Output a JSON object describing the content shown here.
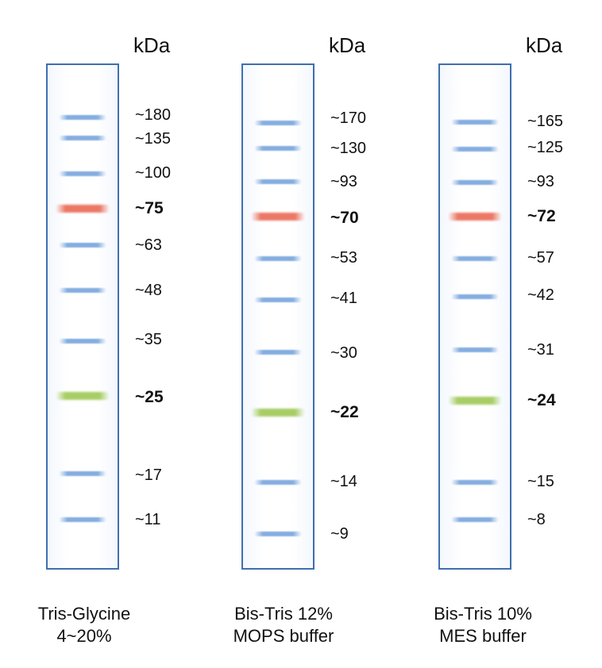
{
  "unit_label": "kDa",
  "lanes": [
    {
      "caption": [
        "Tris-Glycine",
        "4~20%"
      ],
      "bands": [
        {
          "label": "~180",
          "color": "blue",
          "bold": false
        },
        {
          "label": "~135",
          "color": "blue",
          "bold": false
        },
        {
          "label": "~100",
          "color": "blue",
          "bold": false
        },
        {
          "label": "~75",
          "color": "red",
          "bold": true
        },
        {
          "label": "~63",
          "color": "blue",
          "bold": false
        },
        {
          "label": "~48",
          "color": "blue",
          "bold": false
        },
        {
          "label": "~35",
          "color": "blue",
          "bold": false
        },
        {
          "label": "~25",
          "color": "green",
          "bold": true
        },
        {
          "label": "~17",
          "color": "blue",
          "bold": false
        },
        {
          "label": "~11",
          "color": "blue",
          "bold": false
        }
      ]
    },
    {
      "caption": [
        "Bis-Tris 12%",
        "MOPS buffer"
      ],
      "bands": [
        {
          "label": "~170",
          "color": "blue",
          "bold": false
        },
        {
          "label": "~130",
          "color": "blue",
          "bold": false
        },
        {
          "label": "~93",
          "color": "blue",
          "bold": false
        },
        {
          "label": "~70",
          "color": "red",
          "bold": true
        },
        {
          "label": "~53",
          "color": "blue",
          "bold": false
        },
        {
          "label": "~41",
          "color": "blue",
          "bold": false
        },
        {
          "label": "~30",
          "color": "blue",
          "bold": false
        },
        {
          "label": "~22",
          "color": "green",
          "bold": true
        },
        {
          "label": "~14",
          "color": "blue",
          "bold": false
        },
        {
          "label": "~9",
          "color": "blue",
          "bold": false
        }
      ]
    },
    {
      "caption": [
        "Bis-Tris 10%",
        "MES buffer"
      ],
      "bands": [
        {
          "label": "~165",
          "color": "blue",
          "bold": false
        },
        {
          "label": "~125",
          "color": "blue",
          "bold": false
        },
        {
          "label": "~93",
          "color": "blue",
          "bold": false
        },
        {
          "label": "~72",
          "color": "red",
          "bold": true
        },
        {
          "label": "~57",
          "color": "blue",
          "bold": false
        },
        {
          "label": "~42",
          "color": "blue",
          "bold": false
        },
        {
          "label": "~31",
          "color": "blue",
          "bold": false
        },
        {
          "label": "~24",
          "color": "green",
          "bold": true
        },
        {
          "label": "~15",
          "color": "blue",
          "bold": false
        },
        {
          "label": "~8",
          "color": "blue",
          "bold": false
        }
      ]
    }
  ],
  "colors": {
    "blue": "#5b92d6",
    "red": "#e8604a",
    "green": "#98c54a",
    "border": "#3f6fae"
  }
}
